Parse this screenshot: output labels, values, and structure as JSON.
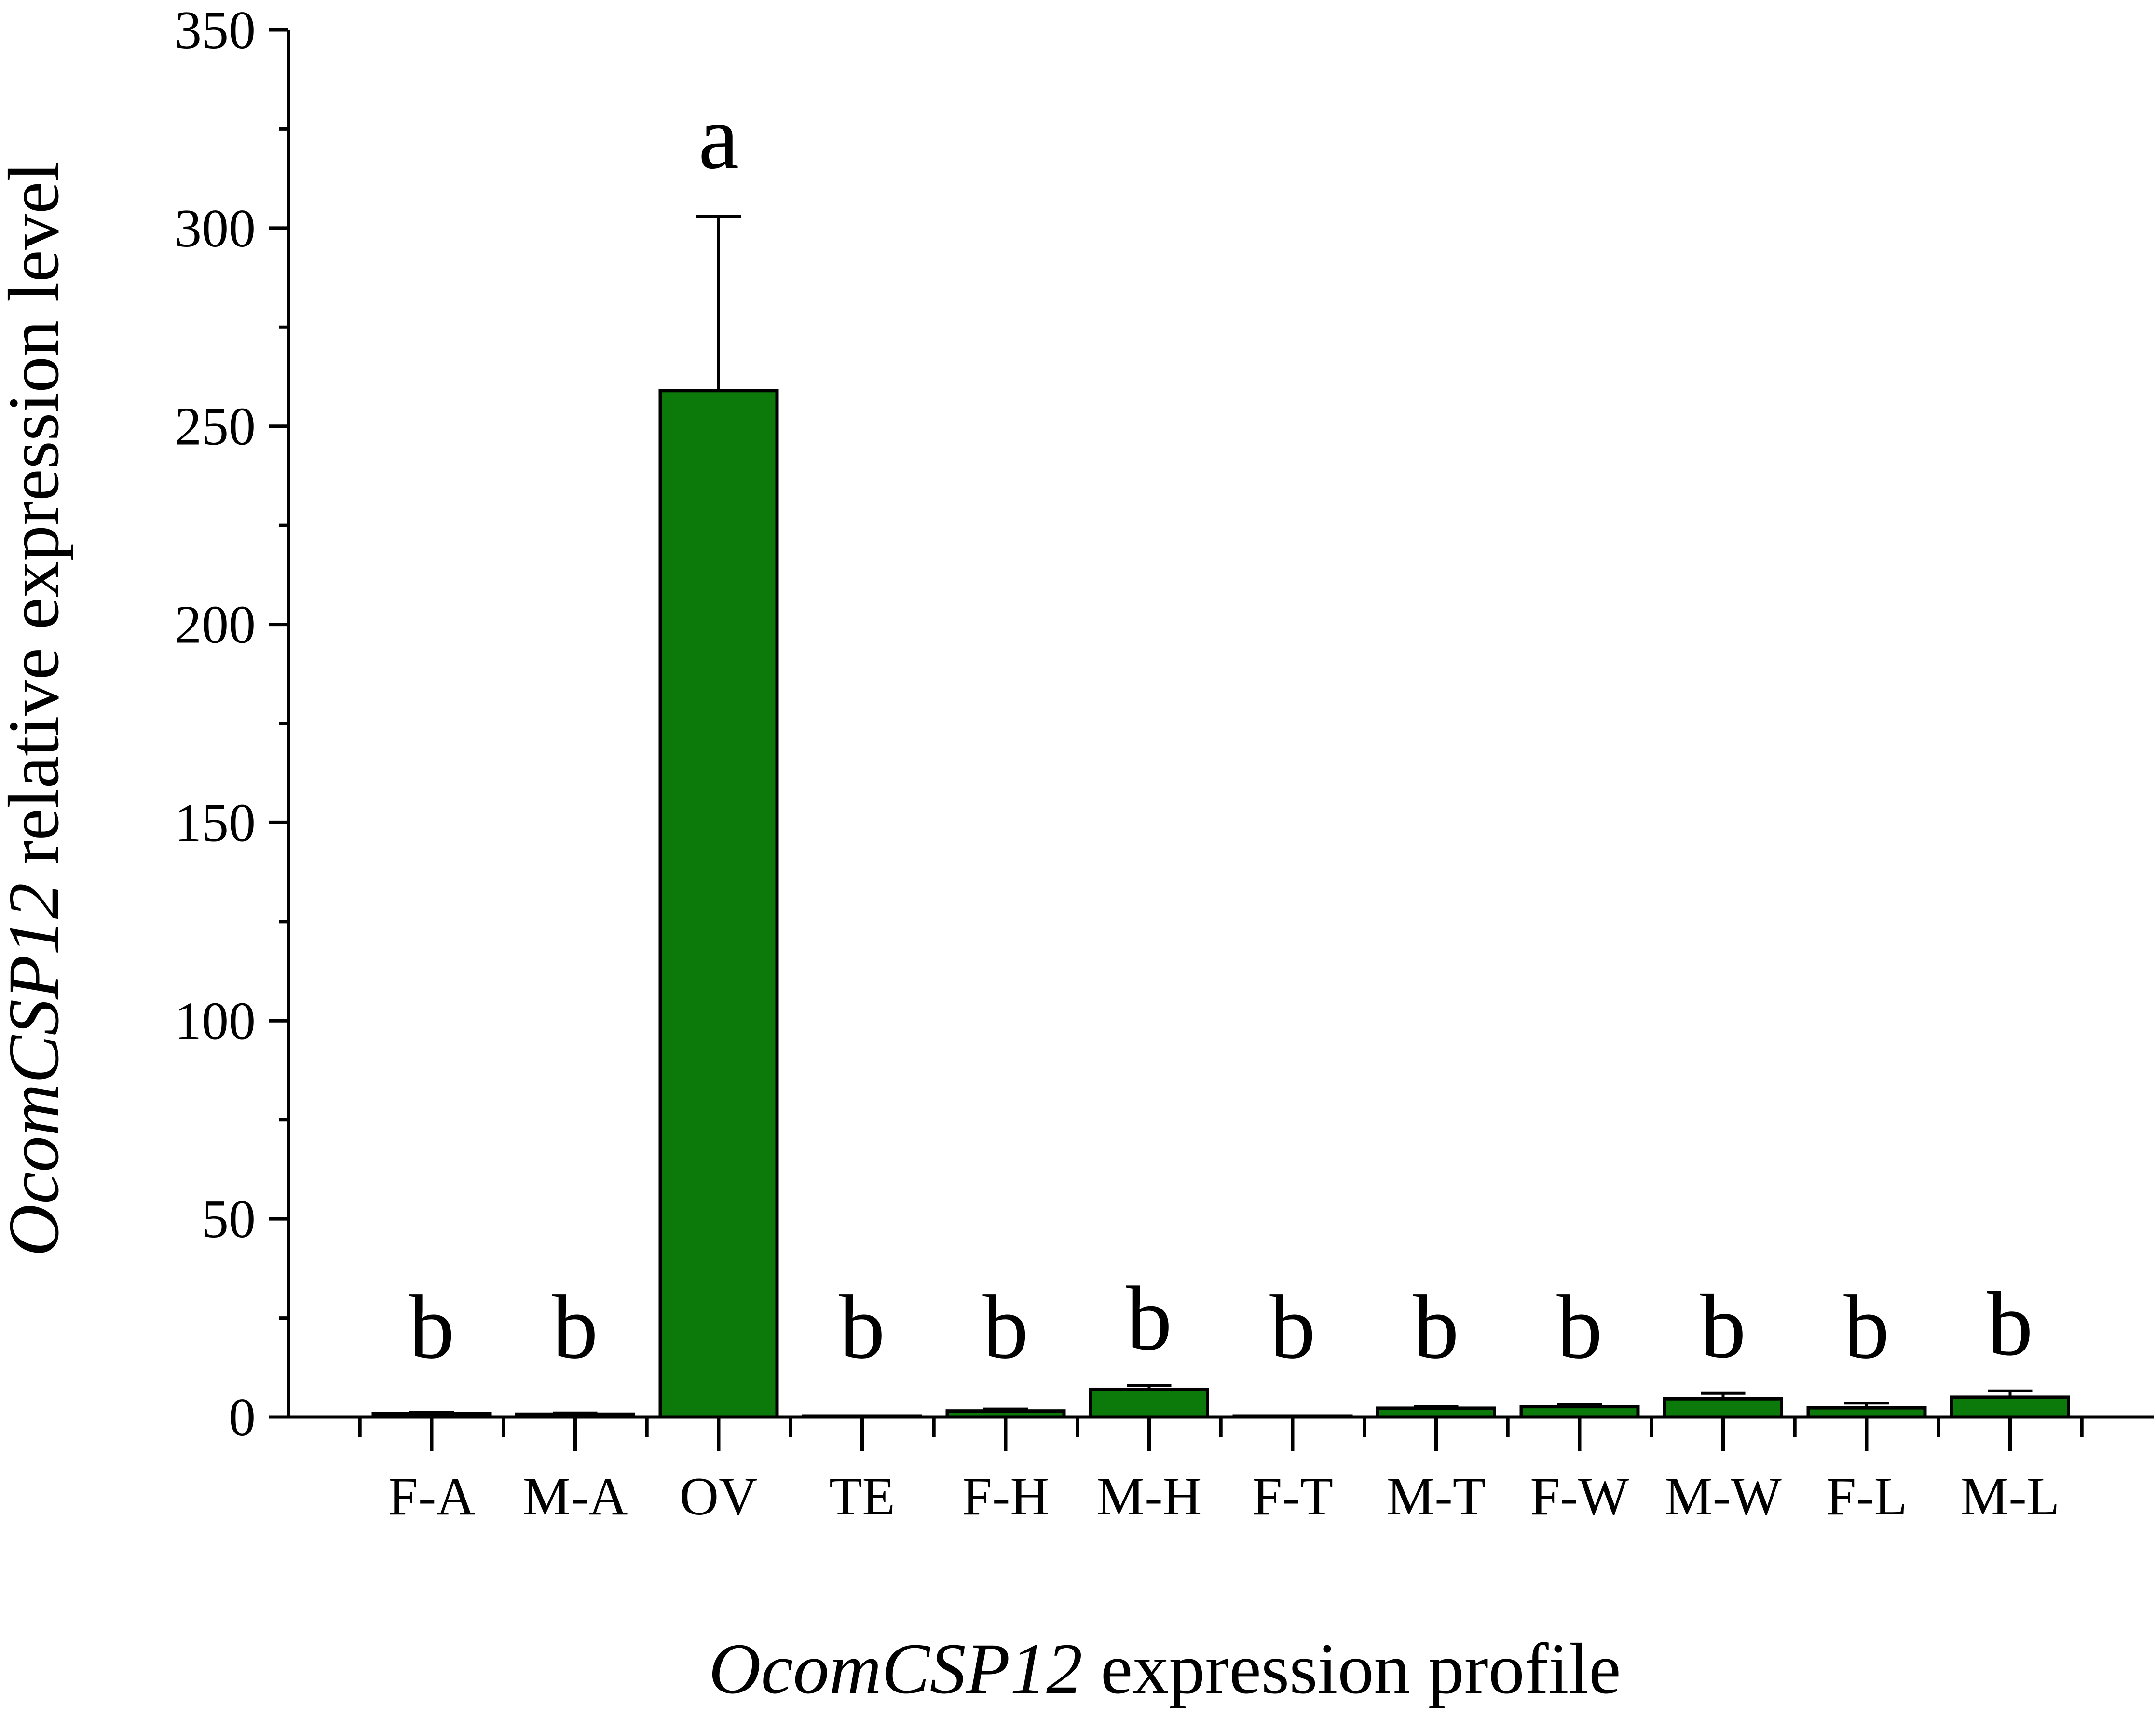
{
  "chart_data": {
    "type": "bar",
    "xlabel": {
      "italic": "OcomCSP12",
      "rest": " expression profile"
    },
    "ylabel": {
      "italic": "OcomCSP12",
      "rest": " relative expression level"
    },
    "ylim": [
      0,
      350
    ],
    "yticks": [
      0,
      50,
      100,
      150,
      200,
      250,
      300,
      350
    ],
    "ytick_labels": [
      "0",
      "50",
      "100",
      "150",
      "200",
      "250",
      "300",
      "350"
    ],
    "minor_tick_step": 25,
    "categories": [
      "F-A",
      "M-A",
      "OV",
      "TE",
      "F-H",
      "M-H",
      "F-T",
      "M-T",
      "F-W",
      "M-W",
      "F-L",
      "M-L"
    ],
    "values": [
      0.8,
      0.7,
      259,
      0.1,
      1.5,
      7,
      0.2,
      2.2,
      2.6,
      4.6,
      2.3,
      5
    ],
    "errors": [
      0.4,
      0.3,
      44,
      0.1,
      0.5,
      1,
      0.1,
      0.4,
      0.6,
      1.4,
      1.2,
      1.6
    ],
    "significance": [
      "b",
      "b",
      "a",
      "b",
      "b",
      "b",
      "b",
      "b",
      "b",
      "b",
      "b",
      "b"
    ],
    "bar_color": "#0b7a0b",
    "grid": false,
    "legend": "none"
  }
}
